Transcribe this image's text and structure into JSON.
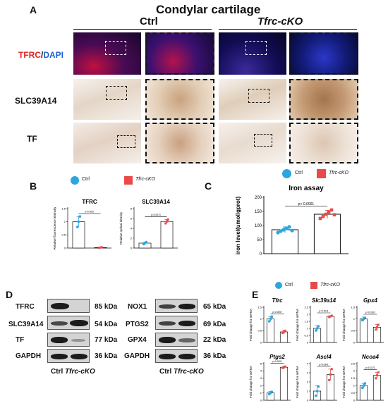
{
  "panel_a": {
    "letter": "A",
    "title": "Condylar cartilage",
    "ctrl": "Ctrl",
    "cko": "Tfrc-cKO",
    "row_tfrc_red": "TFRC",
    "row_tfrc_sep": "/",
    "row_tfrc_blue": "DAPI",
    "row_slc": "SLC39A14",
    "row_tf": "TF"
  },
  "panel_b": {
    "letter": "B",
    "legend_ctrl": "Ctrl",
    "legend_cko": "Tfrc-cKO",
    "colors": {
      "ctrl": "#2aa6e0",
      "cko": "#e84a4a"
    }
  },
  "panel_c": {
    "letter": "C",
    "legend_ctrl": "Ctrl",
    "legend_cko": "Tfrc-cKO"
  },
  "panel_d": {
    "letter": "D",
    "left_rows": [
      {
        "name": "TFRC",
        "kda": "85 kDa"
      },
      {
        "name": "SLC39A14",
        "kda": "54 kDa"
      },
      {
        "name": "TF",
        "kda": "77 kDa"
      },
      {
        "name": "GAPDH",
        "kda": "36 kDa"
      }
    ],
    "right_rows": [
      {
        "name": "NOX1",
        "kda": "65 kDa"
      },
      {
        "name": "PTGS2",
        "kda": "69 kDa"
      },
      {
        "name": "GPX4",
        "kda": "22 kDa"
      },
      {
        "name": "GAPDH",
        "kda": "36 kDa"
      }
    ],
    "foot_ctrl": "Ctrl",
    "foot_cko": "Tfrc-cKO"
  },
  "panel_e": {
    "letter": "E",
    "legend_ctrl": "Ctrl",
    "legend_cko": "Tfrc-cKO"
  },
  "chart_data": [
    {
      "type": "bar",
      "id": "b_tfrc",
      "title": "TFRC",
      "ylabel": "Relative fluorescence intensity",
      "categories": [
        "Ctrl",
        "Tfrc-cKO"
      ],
      "values": [
        1.0,
        0.02
      ],
      "errors": [
        0.2,
        0.02
      ],
      "points": [
        [
          0.8,
          1.0,
          1.2
        ],
        [
          0.01,
          0.02,
          0.03
        ]
      ],
      "ylim": [
        0,
        1.5
      ],
      "yticks": [
        0,
        0.5,
        1,
        1.5
      ],
      "pvalue": "p=0.0037"
    },
    {
      "type": "bar",
      "id": "b_slc",
      "title": "SLC39A14",
      "ylabel": "Relative optical density",
      "categories": [
        "Ctrl",
        "Tfrc-cKO"
      ],
      "values": [
        1.0,
        5.4
      ],
      "errors": [
        0.2,
        0.4
      ],
      "points": [
        [
          0.8,
          1.0,
          1.2
        ],
        [
          5.0,
          5.4,
          5.8
        ]
      ],
      "ylim": [
        0,
        8
      ],
      "yticks": [
        0,
        2,
        4,
        6,
        8
      ],
      "pvalue": "p=0.0074"
    },
    {
      "type": "bar",
      "id": "c_iron",
      "title": "Iron assay",
      "ylabel": "iron level(umol/gprot)",
      "categories": [
        "Ctrl",
        "Tfrc-cKO"
      ],
      "values": [
        85,
        140
      ],
      "errors": [
        10,
        14
      ],
      "points": [
        [
          75,
          80,
          85,
          90,
          95,
          82
        ],
        [
          125,
          132,
          140,
          148,
          155,
          138
        ]
      ],
      "ylim": [
        0,
        200
      ],
      "yticks": [
        0,
        50,
        100,
        150,
        200
      ],
      "pvalue": "p< 0.0001"
    },
    {
      "type": "bar",
      "id": "e_tfrc",
      "title": "Tfrc",
      "ylabel": "Fold change for mRNA",
      "categories": [
        "Ctrl",
        "Tfrc-cKO"
      ],
      "values": [
        1.0,
        0.45
      ],
      "errors": [
        0.1,
        0.06
      ],
      "points": [
        [
          0.9,
          1.0,
          1.1
        ],
        [
          0.4,
          0.45,
          0.5
        ]
      ],
      "ylim": [
        0,
        1.5
      ],
      "yticks": [
        0,
        0.5,
        1,
        1.5
      ],
      "pvalue": "p=0.0057"
    },
    {
      "type": "bar",
      "id": "e_slc",
      "title": "Slc39a14",
      "ylabel": "Fold change for mRNA",
      "categories": [
        "Ctrl",
        "Tfrc-cKO"
      ],
      "values": [
        1.0,
        1.85
      ],
      "errors": [
        0.2,
        0.05
      ],
      "points": [
        [
          0.85,
          1.0,
          1.15
        ],
        [
          1.8,
          1.85,
          1.9
        ]
      ],
      "ylim": [
        0,
        2.5
      ],
      "yticks": [
        0,
        0.5,
        1,
        1.5,
        2,
        2.5
      ],
      "pvalue": "p=0.0011"
    },
    {
      "type": "bar",
      "id": "e_gpx4",
      "title": "Gpx4",
      "ylabel": "Fold change for mRNA",
      "categories": [
        "Ctrl",
        "Tfrc-cKO"
      ],
      "values": [
        1.0,
        0.65
      ],
      "errors": [
        0.08,
        0.12
      ],
      "points": [
        [
          0.95,
          1.0,
          1.05
        ],
        [
          0.55,
          0.65,
          0.75
        ]
      ],
      "ylim": [
        0,
        1.5
      ],
      "yticks": [
        0,
        0.5,
        1,
        1.5
      ],
      "pvalue": "p=0.0303"
    },
    {
      "type": "bar",
      "id": "e_ptgs2",
      "title": "Ptgs2",
      "ylabel": "Fold change for mRNA",
      "categories": [
        "Ctrl",
        "Tfrc-cKO"
      ],
      "values": [
        1.0,
        4.5
      ],
      "errors": [
        0.2,
        0.15
      ],
      "points": [
        [
          0.85,
          1.0,
          1.15
        ],
        [
          4.4,
          4.5,
          4.6
        ]
      ],
      "ylim": [
        0,
        5
      ],
      "yticks": [
        0,
        1,
        2,
        3,
        4,
        5
      ],
      "pvalue": "p<0.0001"
    },
    {
      "type": "bar",
      "id": "e_ascl4",
      "title": "Ascl4",
      "ylabel": "Fold change for mRNA",
      "categories": [
        "Ctrl",
        "Tfrc-cKO"
      ],
      "values": [
        1.0,
        2.8
      ],
      "errors": [
        0.6,
        0.6
      ],
      "points": [
        [
          0.5,
          1.0,
          1.5
        ],
        [
          2.2,
          2.8,
          3.4
        ]
      ],
      "ylim": [
        0,
        4
      ],
      "yticks": [
        0,
        1,
        2,
        3,
        4
      ],
      "pvalue": "p=0.0341"
    },
    {
      "type": "bar",
      "id": "e_ncoa4",
      "title": "Ncoa4",
      "ylabel": "Fold change for mRNA",
      "categories": [
        "Ctrl",
        "Tfrc-cKO"
      ],
      "values": [
        1.0,
        1.7
      ],
      "errors": [
        0.15,
        0.2
      ],
      "points": [
        [
          0.85,
          1.0,
          1.15
        ],
        [
          1.5,
          1.7,
          1.9
        ]
      ],
      "ylim": [
        0,
        2.5
      ],
      "yticks": [
        0,
        0.5,
        1,
        1.5,
        2,
        2.5
      ],
      "pvalue": "p=0.0271"
    }
  ]
}
